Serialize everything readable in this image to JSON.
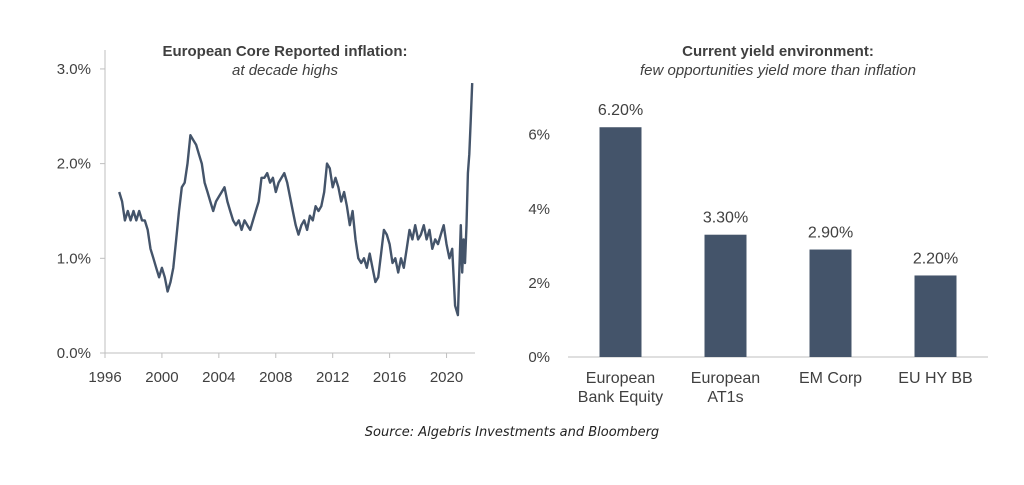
{
  "source": "Source: Algebris Investments and Bloomberg",
  "colors": {
    "series": "#44546a",
    "axis": "#bfbfbf",
    "text": "#404040"
  },
  "chart_data": [
    {
      "type": "line",
      "title": "European Core Reported inflation:",
      "subtitle": "at decade highs",
      "xlabel": "",
      "ylabel": "",
      "xlim": [
        1996,
        2022
      ],
      "ylim": [
        0,
        3.2
      ],
      "x_ticks": [
        "1996",
        "2000",
        "2004",
        "2008",
        "2012",
        "2016",
        "2020"
      ],
      "x_tick_values": [
        1996,
        2000,
        2004,
        2008,
        2012,
        2016,
        2020
      ],
      "y_ticks": [
        "0.0%",
        "1.0%",
        "2.0%",
        "3.0%"
      ],
      "y_tick_values": [
        0,
        1,
        2,
        3
      ],
      "grid": false,
      "series": [
        {
          "points": [
            [
              1997.0,
              1.7
            ],
            [
              1997.2,
              1.6
            ],
            [
              1997.4,
              1.4
            ],
            [
              1997.6,
              1.5
            ],
            [
              1997.8,
              1.4
            ],
            [
              1998.0,
              1.5
            ],
            [
              1998.2,
              1.4
            ],
            [
              1998.4,
              1.5
            ],
            [
              1998.6,
              1.4
            ],
            [
              1998.8,
              1.4
            ],
            [
              1999.0,
              1.3
            ],
            [
              1999.2,
              1.1
            ],
            [
              1999.4,
              1.0
            ],
            [
              1999.6,
              0.9
            ],
            [
              1999.8,
              0.8
            ],
            [
              2000.0,
              0.9
            ],
            [
              2000.2,
              0.8
            ],
            [
              2000.4,
              0.65
            ],
            [
              2000.6,
              0.75
            ],
            [
              2000.8,
              0.9
            ],
            [
              2001.0,
              1.2
            ],
            [
              2001.2,
              1.5
            ],
            [
              2001.4,
              1.75
            ],
            [
              2001.6,
              1.8
            ],
            [
              2001.8,
              2.0
            ],
            [
              2002.0,
              2.3
            ],
            [
              2002.2,
              2.25
            ],
            [
              2002.4,
              2.2
            ],
            [
              2002.6,
              2.1
            ],
            [
              2002.8,
              2.0
            ],
            [
              2003.0,
              1.8
            ],
            [
              2003.2,
              1.7
            ],
            [
              2003.4,
              1.6
            ],
            [
              2003.6,
              1.5
            ],
            [
              2003.8,
              1.6
            ],
            [
              2004.0,
              1.65
            ],
            [
              2004.2,
              1.7
            ],
            [
              2004.4,
              1.75
            ],
            [
              2004.6,
              1.6
            ],
            [
              2004.8,
              1.5
            ],
            [
              2005.0,
              1.4
            ],
            [
              2005.2,
              1.35
            ],
            [
              2005.4,
              1.4
            ],
            [
              2005.6,
              1.3
            ],
            [
              2005.8,
              1.4
            ],
            [
              2006.0,
              1.35
            ],
            [
              2006.2,
              1.3
            ],
            [
              2006.4,
              1.4
            ],
            [
              2006.6,
              1.5
            ],
            [
              2006.8,
              1.6
            ],
            [
              2007.0,
              1.85
            ],
            [
              2007.2,
              1.85
            ],
            [
              2007.4,
              1.9
            ],
            [
              2007.6,
              1.8
            ],
            [
              2007.8,
              1.85
            ],
            [
              2008.0,
              1.7
            ],
            [
              2008.2,
              1.8
            ],
            [
              2008.4,
              1.85
            ],
            [
              2008.6,
              1.9
            ],
            [
              2008.8,
              1.8
            ],
            [
              2009.0,
              1.65
            ],
            [
              2009.2,
              1.5
            ],
            [
              2009.4,
              1.35
            ],
            [
              2009.6,
              1.25
            ],
            [
              2009.8,
              1.35
            ],
            [
              2010.0,
              1.4
            ],
            [
              2010.2,
              1.3
            ],
            [
              2010.4,
              1.45
            ],
            [
              2010.6,
              1.4
            ],
            [
              2010.8,
              1.55
            ],
            [
              2011.0,
              1.5
            ],
            [
              2011.2,
              1.55
            ],
            [
              2011.4,
              1.7
            ],
            [
              2011.6,
              2.0
            ],
            [
              2011.8,
              1.95
            ],
            [
              2012.0,
              1.75
            ],
            [
              2012.2,
              1.85
            ],
            [
              2012.4,
              1.75
            ],
            [
              2012.6,
              1.6
            ],
            [
              2012.8,
              1.7
            ],
            [
              2013.0,
              1.55
            ],
            [
              2013.2,
              1.35
            ],
            [
              2013.4,
              1.5
            ],
            [
              2013.6,
              1.2
            ],
            [
              2013.8,
              1.0
            ],
            [
              2014.0,
              0.95
            ],
            [
              2014.2,
              1.0
            ],
            [
              2014.4,
              0.9
            ],
            [
              2014.6,
              1.05
            ],
            [
              2014.8,
              0.9
            ],
            [
              2015.0,
              0.75
            ],
            [
              2015.2,
              0.8
            ],
            [
              2015.4,
              1.05
            ],
            [
              2015.6,
              1.3
            ],
            [
              2015.8,
              1.25
            ],
            [
              2016.0,
              1.15
            ],
            [
              2016.2,
              0.95
            ],
            [
              2016.4,
              1.0
            ],
            [
              2016.6,
              0.85
            ],
            [
              2016.8,
              1.0
            ],
            [
              2017.0,
              0.9
            ],
            [
              2017.2,
              1.1
            ],
            [
              2017.4,
              1.3
            ],
            [
              2017.6,
              1.2
            ],
            [
              2017.8,
              1.35
            ],
            [
              2018.0,
              1.2
            ],
            [
              2018.2,
              1.25
            ],
            [
              2018.4,
              1.35
            ],
            [
              2018.6,
              1.2
            ],
            [
              2018.8,
              1.3
            ],
            [
              2019.0,
              1.1
            ],
            [
              2019.2,
              1.2
            ],
            [
              2019.4,
              1.15
            ],
            [
              2019.6,
              1.25
            ],
            [
              2019.8,
              1.35
            ],
            [
              2020.0,
              1.15
            ],
            [
              2020.2,
              1.0
            ],
            [
              2020.4,
              1.1
            ],
            [
              2020.6,
              0.5
            ],
            [
              2020.8,
              0.4
            ],
            [
              2021.0,
              1.35
            ],
            [
              2021.1,
              0.85
            ],
            [
              2021.2,
              1.2
            ],
            [
              2021.3,
              0.95
            ],
            [
              2021.4,
              1.35
            ],
            [
              2021.5,
              1.9
            ],
            [
              2021.6,
              2.1
            ],
            [
              2021.7,
              2.45
            ],
            [
              2021.8,
              2.85
            ]
          ]
        }
      ]
    },
    {
      "type": "bar",
      "title": "Current yield environment:",
      "subtitle": "few opportunities yield more than inflation",
      "xlabel": "",
      "ylabel": "",
      "ylim": [
        0,
        6.8
      ],
      "y_ticks": [
        "0%",
        "2%",
        "4%",
        "6%"
      ],
      "y_tick_values": [
        0,
        2,
        4,
        6
      ],
      "grid": false,
      "categories": [
        [
          "European",
          "Bank Equity"
        ],
        [
          "European",
          "AT1s"
        ],
        [
          "EM Corp"
        ],
        [
          "EU HY BB"
        ]
      ],
      "values": [
        6.2,
        3.3,
        2.9,
        2.2
      ],
      "data_labels": [
        "6.20%",
        "3.30%",
        "2.90%",
        "2.20%"
      ]
    }
  ]
}
